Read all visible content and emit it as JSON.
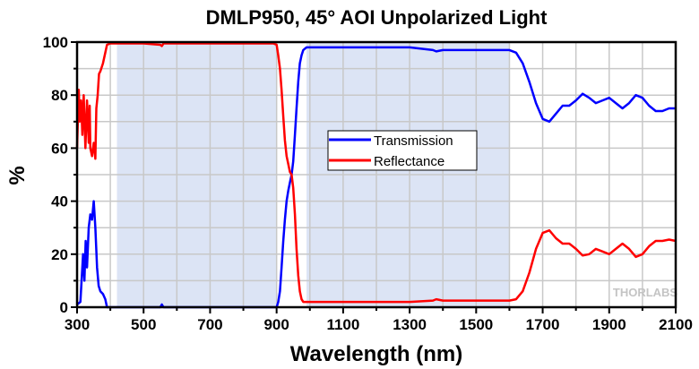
{
  "chart_data": {
    "type": "line",
    "title": "DMLP950, 45° AOI Unpolarized Light",
    "xlabel": "Wavelength (nm)",
    "ylabel": "%",
    "xlim": [
      300,
      2100
    ],
    "ylim": [
      0,
      100
    ],
    "xticks": [
      300,
      500,
      700,
      900,
      1100,
      1300,
      1500,
      1700,
      1900,
      2100
    ],
    "yticks": [
      0,
      20,
      40,
      60,
      80,
      100
    ],
    "grid": true,
    "legend_position": "center",
    "shaded_regions": [
      [
        420,
        900
      ],
      [
        990,
        1600
      ]
    ],
    "shade_color": "#dce4f5",
    "watermark": "THORLABS",
    "series": [
      {
        "name": "Transmission",
        "color": "#0000ff",
        "x": [
          300,
          310,
          318,
          322,
          326,
          330,
          335,
          340,
          345,
          350,
          355,
          360,
          365,
          370,
          378,
          385,
          390,
          400,
          500,
          550,
          555,
          560,
          700,
          890,
          900,
          905,
          910,
          915,
          920,
          925,
          930,
          935,
          940,
          945,
          950,
          955,
          960,
          965,
          970,
          975,
          980,
          985,
          990,
          1000,
          1100,
          1200,
          1300,
          1370,
          1380,
          1400,
          1500,
          1600,
          1620,
          1640,
          1660,
          1680,
          1700,
          1720,
          1740,
          1760,
          1780,
          1800,
          1820,
          1840,
          1860,
          1880,
          1900,
          1920,
          1940,
          1960,
          1980,
          2000,
          2020,
          2040,
          2060,
          2080,
          2100
        ],
        "y": [
          1,
          2,
          20,
          10,
          25,
          15,
          30,
          35,
          33,
          40,
          30,
          15,
          8,
          6,
          5,
          3,
          0,
          0,
          0,
          0,
          1,
          0,
          0,
          0,
          0,
          2,
          6,
          15,
          25,
          33,
          40,
          44,
          47,
          50,
          55,
          65,
          75,
          85,
          92,
          95,
          97,
          97.5,
          98,
          98,
          98,
          98,
          98,
          97,
          96.5,
          97,
          97,
          97,
          96,
          92,
          85,
          77,
          71,
          70,
          73,
          76,
          76,
          78,
          80.5,
          79,
          77,
          78,
          79,
          77,
          75,
          77,
          80,
          79,
          76,
          74,
          74,
          75,
          75
        ]
      },
      {
        "name": "Reflectance",
        "color": "#ff0000",
        "x": [
          300,
          305,
          308,
          312,
          316,
          320,
          325,
          330,
          335,
          338,
          340,
          345,
          350,
          355,
          358,
          362,
          366,
          370,
          378,
          385,
          390,
          400,
          500,
          550,
          555,
          560,
          700,
          890,
          900,
          905,
          910,
          915,
          920,
          925,
          930,
          935,
          940,
          945,
          950,
          955,
          960,
          965,
          970,
          975,
          980,
          985,
          990,
          1000,
          1100,
          1200,
          1300,
          1370,
          1380,
          1400,
          1500,
          1600,
          1620,
          1640,
          1660,
          1680,
          1700,
          1720,
          1740,
          1760,
          1780,
          1800,
          1820,
          1840,
          1860,
          1880,
          1900,
          1920,
          1940,
          1960,
          1980,
          2000,
          2020,
          2040,
          2060,
          2080,
          2100
        ],
        "y": [
          60,
          82,
          70,
          78,
          65,
          80,
          60,
          78,
          62,
          76,
          60,
          57,
          62,
          56,
          75,
          80,
          88,
          89,
          92,
          96,
          99,
          99.5,
          99.5,
          99,
          98.5,
          99.5,
          99.5,
          99.5,
          99,
          95,
          90,
          82,
          72,
          63,
          57,
          54,
          51,
          50,
          45,
          35,
          22,
          12,
          6,
          3,
          2,
          2,
          2,
          2,
          2,
          2,
          2,
          2.5,
          3,
          2.5,
          2.5,
          2.5,
          3,
          6,
          13,
          22,
          28,
          29,
          26,
          24,
          24,
          22,
          19.5,
          20,
          22,
          21,
          20,
          22,
          24,
          22,
          19,
          20,
          23,
          25,
          25,
          25.5,
          25
        ]
      }
    ]
  }
}
